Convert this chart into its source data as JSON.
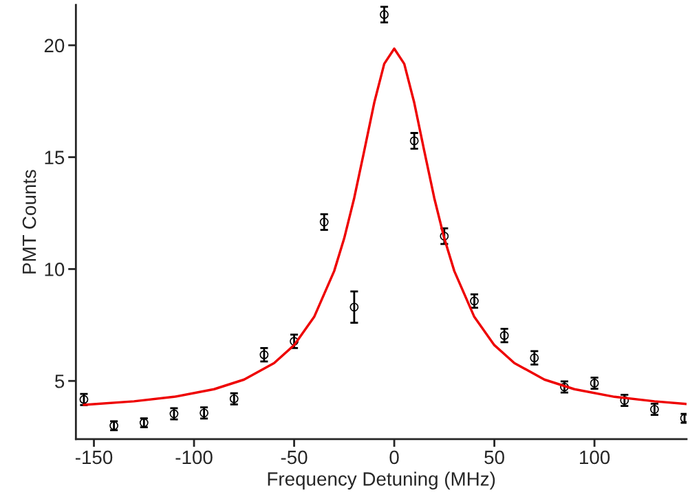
{
  "chart_data": {
    "type": "scatter",
    "xlabel": "Frequency Detuning (MHz)",
    "ylabel": "PMT Counts",
    "xlim": [
      -159,
      146
    ],
    "ylim": [
      2.4,
      21.8
    ],
    "xticks": [
      -150,
      -100,
      -50,
      0,
      50,
      100
    ],
    "yticks": [
      5,
      10,
      15,
      20
    ],
    "grid": false,
    "legend": false,
    "series": [
      {
        "color": "#000000",
        "marker": "circle",
        "x": [
          -155,
          -140,
          -125,
          -110,
          -95,
          -80,
          -65,
          -50,
          -35,
          -20,
          -5,
          10,
          25,
          40,
          55,
          70,
          85,
          100,
          115,
          130,
          145
        ],
        "values": [
          4.17,
          3.0,
          3.13,
          3.53,
          3.57,
          4.2,
          6.17,
          6.77,
          12.1,
          8.3,
          21.37,
          15.73,
          11.47,
          8.57,
          7.03,
          6.03,
          4.73,
          4.9,
          4.13,
          3.73,
          3.33
        ],
        "errors": [
          0.25,
          0.2,
          0.2,
          0.25,
          0.25,
          0.25,
          0.3,
          0.3,
          0.35,
          0.7,
          0.35,
          0.35,
          0.35,
          0.3,
          0.3,
          0.3,
          0.25,
          0.25,
          0.25,
          0.25,
          0.2
        ]
      },
      {
        "type": "line",
        "color": "#ee0000",
        "marker": "none",
        "line_style": "solid",
        "x": [
          -155,
          -130,
          -110,
          -90,
          -75,
          -60,
          -50,
          -40,
          -30,
          -25,
          -20,
          -15,
          -10,
          -5,
          0,
          5,
          10,
          15,
          20,
          25,
          30,
          40,
          50,
          60,
          75,
          90,
          110,
          130,
          146
        ],
        "values": [
          3.93,
          4.09,
          4.29,
          4.63,
          5.06,
          5.8,
          6.6,
          7.86,
          9.91,
          11.37,
          13.17,
          15.28,
          17.43,
          19.17,
          19.85,
          19.17,
          17.43,
          15.28,
          13.17,
          11.37,
          9.91,
          7.86,
          6.6,
          5.8,
          5.06,
          4.63,
          4.29,
          4.09,
          3.97
        ]
      }
    ]
  }
}
